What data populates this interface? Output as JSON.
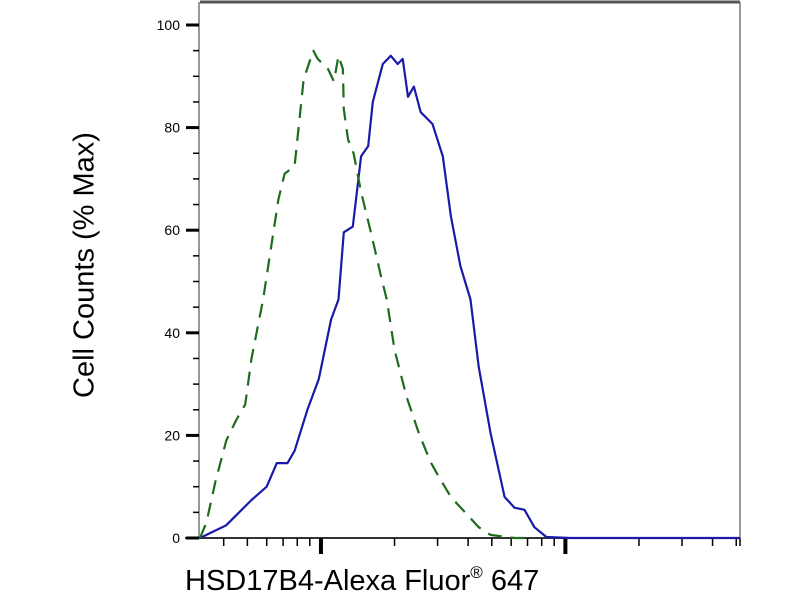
{
  "chart_data": {
    "type": "line",
    "title": "",
    "xlabel_main": "HSD17B4-Alexa Fluor",
    "xlabel_reg": "®",
    "xlabel_tail": " 647",
    "ylabel": "Cell Counts (% Max)",
    "xscale": "log",
    "xlim": [
      32,
      5180
    ],
    "ylim": [
      0,
      100
    ],
    "yticks": [
      "0",
      "20",
      "40",
      "60",
      "80",
      "100"
    ],
    "xtick_labels_shown": false,
    "grid": false,
    "legend": "none",
    "series": [
      {
        "color": "#1a1aa8",
        "style": "solid",
        "x": [
          32,
          41,
          52,
          60,
          66,
          73,
          78,
          88,
          98,
          110,
          118,
          124,
          135,
          146,
          156,
          163,
          179,
          193,
          206,
          216,
          227,
          240,
          256,
          286,
          315,
          340,
          372,
          409,
          442,
          494,
          564,
          619,
          680,
          747,
          836,
          1047,
          5180
        ],
        "y": [
          0,
          2.5,
          7.4,
          10,
          14.6,
          14.6,
          17,
          25,
          31,
          42.6,
          46.5,
          59.6,
          60.7,
          74.4,
          76.4,
          85,
          92.4,
          94,
          92.4,
          93.4,
          86,
          88,
          83,
          80.7,
          74.4,
          62.7,
          53,
          46.5,
          33.4,
          20.5,
          8,
          5.9,
          5.5,
          2.1,
          0.2,
          0,
          0
        ]
      },
      {
        "color": "#1e6b1e",
        "style": "dashed",
        "x": [
          32,
          34,
          37,
          41,
          45,
          49,
          52,
          58,
          67,
          71,
          78,
          81,
          85,
          93,
          97,
          107,
          113,
          118,
          123,
          124,
          129,
          136,
          146,
          160,
          176,
          186,
          200,
          224,
          251,
          281,
          303,
          340,
          380,
          442,
          494,
          619,
          719
        ],
        "y": [
          0,
          3,
          11,
          19,
          23,
          26,
          35,
          46.5,
          66,
          71,
          72.5,
          80,
          89.5,
          95,
          93.4,
          91.4,
          89,
          94,
          91.4,
          83.6,
          77.7,
          75,
          67.4,
          59.6,
          51,
          46.5,
          36.7,
          27.5,
          20.5,
          14.8,
          12,
          8,
          5.5,
          2.1,
          0.6,
          0,
          0
        ]
      }
    ]
  }
}
